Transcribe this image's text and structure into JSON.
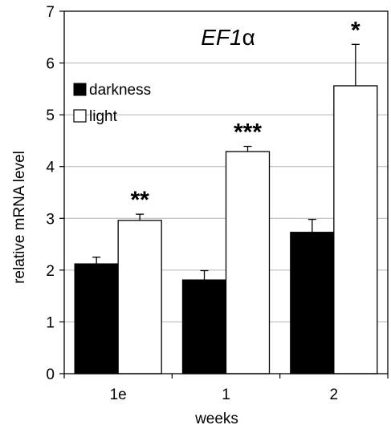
{
  "chart_data": {
    "type": "bar",
    "title": "EF1",
    "title_suffix": "α",
    "xlabel": "weeks",
    "ylabel": "relative mRNA level",
    "categories": [
      "1e",
      "1",
      "2"
    ],
    "ylim": [
      0,
      7
    ],
    "yticks": [
      "0",
      "1",
      "2",
      "3",
      "4",
      "5",
      "6",
      "7"
    ],
    "grid": true,
    "legend_position": "top-left",
    "series": [
      {
        "name": "darkness",
        "color": "#000000",
        "values": [
          2.12,
          1.81,
          2.73
        ],
        "errors": [
          0.13,
          0.18,
          0.25
        ]
      },
      {
        "name": "light",
        "color": "#ffffff",
        "values": [
          2.96,
          4.29,
          5.56
        ],
        "errors": [
          0.12,
          0.1,
          0.8
        ]
      }
    ],
    "significance": [
      "**",
      "***",
      "*"
    ]
  }
}
